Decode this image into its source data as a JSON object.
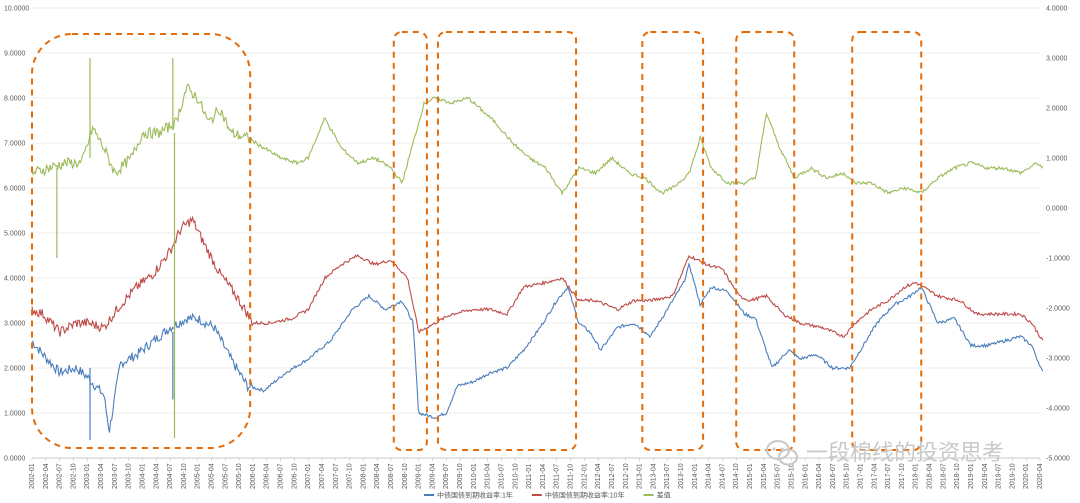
{
  "chart_data": {
    "type": "line",
    "title": "",
    "left_axis": {
      "min": 0,
      "max": 10,
      "step": 1,
      "tick_labels": [
        "0.0000",
        "1.0000",
        "2.0000",
        "3.0000",
        "4.0000",
        "5.0000",
        "6.0000",
        "7.0000",
        "8.0000",
        "9.0000",
        "10.0000"
      ]
    },
    "right_axis": {
      "min": -5,
      "max": 4,
      "step": 1,
      "tick_labels": [
        "-5.0000",
        "-4.0000",
        "-3.0000",
        "-2.0000",
        "-1.0000",
        "0.0000",
        "1.0000",
        "2.0000",
        "3.0000",
        "4.0000"
      ]
    },
    "x_start": "2002-01",
    "x_end": "2020-04",
    "x_label_step_months": 3,
    "series": [
      {
        "name": "中债国债到期收益率:1年",
        "axis": "left",
        "color": "#4a7ebb",
        "points": [
          [
            2002.0,
            2.6
          ],
          [
            2002.2,
            2.3
          ],
          [
            2002.5,
            1.9
          ],
          [
            2002.8,
            2.0
          ],
          [
            2003.0,
            1.8
          ],
          [
            2003.3,
            1.4
          ],
          [
            2003.4,
            0.6
          ],
          [
            2003.6,
            2.1
          ],
          [
            2003.9,
            2.3
          ],
          [
            2004.2,
            2.6
          ],
          [
            2004.5,
            2.9
          ],
          [
            2004.8,
            3.1
          ],
          [
            2005.0,
            3.1
          ],
          [
            2005.3,
            2.9
          ],
          [
            2005.6,
            2.2
          ],
          [
            2005.9,
            1.6
          ],
          [
            2006.2,
            1.5
          ],
          [
            2006.6,
            1.9
          ],
          [
            2007.0,
            2.2
          ],
          [
            2007.4,
            2.6
          ],
          [
            2007.8,
            3.3
          ],
          [
            2008.1,
            3.6
          ],
          [
            2008.4,
            3.3
          ],
          [
            2008.7,
            3.5
          ],
          [
            2008.9,
            3.0
          ],
          [
            2009.0,
            1.0
          ],
          [
            2009.3,
            0.9
          ],
          [
            2009.5,
            1.0
          ],
          [
            2009.7,
            1.6
          ],
          [
            2010.0,
            1.7
          ],
          [
            2010.3,
            1.9
          ],
          [
            2010.6,
            2.0
          ],
          [
            2010.9,
            2.4
          ],
          [
            2011.2,
            2.9
          ],
          [
            2011.5,
            3.5
          ],
          [
            2011.7,
            3.8
          ],
          [
            2011.9,
            3.0
          ],
          [
            2012.1,
            2.8
          ],
          [
            2012.3,
            2.4
          ],
          [
            2012.6,
            2.9
          ],
          [
            2012.9,
            3.0
          ],
          [
            2013.2,
            2.7
          ],
          [
            2013.5,
            3.3
          ],
          [
            2013.8,
            3.9
          ],
          [
            2013.9,
            4.3
          ],
          [
            2014.1,
            3.4
          ],
          [
            2014.3,
            3.8
          ],
          [
            2014.6,
            3.7
          ],
          [
            2014.9,
            3.2
          ],
          [
            2015.1,
            3.1
          ],
          [
            2015.4,
            2.0
          ],
          [
            2015.7,
            2.4
          ],
          [
            2015.9,
            2.2
          ],
          [
            2016.2,
            2.3
          ],
          [
            2016.5,
            2.0
          ],
          [
            2016.8,
            2.0
          ],
          [
            2017.0,
            2.4
          ],
          [
            2017.3,
            3.0
          ],
          [
            2017.6,
            3.4
          ],
          [
            2017.9,
            3.6
          ],
          [
            2018.1,
            3.8
          ],
          [
            2018.4,
            3.0
          ],
          [
            2018.7,
            3.1
          ],
          [
            2019.0,
            2.5
          ],
          [
            2019.3,
            2.5
          ],
          [
            2019.6,
            2.6
          ],
          [
            2019.9,
            2.7
          ],
          [
            2020.1,
            2.5
          ],
          [
            2020.3,
            1.9
          ]
        ]
      },
      {
        "name": "中债国债到期收益率:10年",
        "axis": "left",
        "color": "#be4b48",
        "points": [
          [
            2002.0,
            3.3
          ],
          [
            2002.2,
            3.2
          ],
          [
            2002.5,
            2.8
          ],
          [
            2002.8,
            3.0
          ],
          [
            2003.0,
            3.0
          ],
          [
            2003.3,
            2.9
          ],
          [
            2003.6,
            3.4
          ],
          [
            2003.9,
            3.8
          ],
          [
            2004.2,
            4.1
          ],
          [
            2004.5,
            4.6
          ],
          [
            2004.7,
            5.1
          ],
          [
            2004.9,
            5.3
          ],
          [
            2005.1,
            4.8
          ],
          [
            2005.4,
            4.1
          ],
          [
            2005.7,
            3.6
          ],
          [
            2006.0,
            3.0
          ],
          [
            2006.3,
            3.0
          ],
          [
            2006.7,
            3.1
          ],
          [
            2007.0,
            3.3
          ],
          [
            2007.3,
            4.0
          ],
          [
            2007.6,
            4.3
          ],
          [
            2007.9,
            4.5
          ],
          [
            2008.2,
            4.3
          ],
          [
            2008.5,
            4.4
          ],
          [
            2008.8,
            4.0
          ],
          [
            2009.0,
            2.8
          ],
          [
            2009.3,
            3.0
          ],
          [
            2009.6,
            3.2
          ],
          [
            2010.0,
            3.3
          ],
          [
            2010.3,
            3.3
          ],
          [
            2010.6,
            3.2
          ],
          [
            2010.9,
            3.8
          ],
          [
            2011.3,
            3.9
          ],
          [
            2011.6,
            4.0
          ],
          [
            2011.9,
            3.5
          ],
          [
            2012.2,
            3.5
          ],
          [
            2012.6,
            3.3
          ],
          [
            2012.9,
            3.5
          ],
          [
            2013.2,
            3.5
          ],
          [
            2013.6,
            3.6
          ],
          [
            2013.9,
            4.5
          ],
          [
            2014.2,
            4.3
          ],
          [
            2014.5,
            4.2
          ],
          [
            2014.8,
            3.6
          ],
          [
            2015.0,
            3.5
          ],
          [
            2015.3,
            3.6
          ],
          [
            2015.6,
            3.2
          ],
          [
            2015.9,
            3.0
          ],
          [
            2016.3,
            2.9
          ],
          [
            2016.7,
            2.7
          ],
          [
            2016.9,
            3.0
          ],
          [
            2017.2,
            3.3
          ],
          [
            2017.5,
            3.5
          ],
          [
            2017.8,
            3.8
          ],
          [
            2018.0,
            3.9
          ],
          [
            2018.4,
            3.6
          ],
          [
            2018.8,
            3.5
          ],
          [
            2019.1,
            3.2
          ],
          [
            2019.5,
            3.2
          ],
          [
            2019.9,
            3.2
          ],
          [
            2020.1,
            3.0
          ],
          [
            2020.3,
            2.6
          ]
        ]
      },
      {
        "name": "差值",
        "axis": "right",
        "color": "#9bbb59",
        "points": [
          [
            2002.0,
            0.7
          ],
          [
            2002.3,
            0.8
          ],
          [
            2002.6,
            0.9
          ],
          [
            2002.9,
            0.9
          ],
          [
            2003.1,
            1.6
          ],
          [
            2003.3,
            1.2
          ],
          [
            2003.5,
            0.7
          ],
          [
            2003.8,
            1.0
          ],
          [
            2004.0,
            1.5
          ],
          [
            2004.3,
            1.5
          ],
          [
            2004.6,
            1.7
          ],
          [
            2004.8,
            2.4
          ],
          [
            2005.0,
            2.2
          ],
          [
            2005.2,
            1.7
          ],
          [
            2005.4,
            2.0
          ],
          [
            2005.6,
            1.5
          ],
          [
            2005.9,
            1.4
          ],
          [
            2006.2,
            1.2
          ],
          [
            2006.5,
            1.0
          ],
          [
            2006.8,
            0.9
          ],
          [
            2007.0,
            1.0
          ],
          [
            2007.3,
            1.8
          ],
          [
            2007.6,
            1.2
          ],
          [
            2007.9,
            0.9
          ],
          [
            2008.2,
            1.0
          ],
          [
            2008.5,
            0.8
          ],
          [
            2008.7,
            0.5
          ],
          [
            2008.9,
            1.3
          ],
          [
            2009.1,
            2.1
          ],
          [
            2009.3,
            2.2
          ],
          [
            2009.6,
            2.1
          ],
          [
            2009.9,
            2.2
          ],
          [
            2010.1,
            2.0
          ],
          [
            2010.4,
            1.7
          ],
          [
            2010.7,
            1.3
          ],
          [
            2011.0,
            1.0
          ],
          [
            2011.3,
            0.8
          ],
          [
            2011.6,
            0.3
          ],
          [
            2011.9,
            0.8
          ],
          [
            2012.2,
            0.7
          ],
          [
            2012.5,
            1.0
          ],
          [
            2012.8,
            0.7
          ],
          [
            2013.1,
            0.6
          ],
          [
            2013.4,
            0.3
          ],
          [
            2013.6,
            0.4
          ],
          [
            2013.9,
            0.7
          ],
          [
            2014.1,
            1.4
          ],
          [
            2014.3,
            0.8
          ],
          [
            2014.6,
            0.5
          ],
          [
            2014.9,
            0.5
          ],
          [
            2015.1,
            0.6
          ],
          [
            2015.3,
            1.9
          ],
          [
            2015.5,
            1.3
          ],
          [
            2015.8,
            0.6
          ],
          [
            2016.1,
            0.8
          ],
          [
            2016.4,
            0.6
          ],
          [
            2016.7,
            0.7
          ],
          [
            2016.9,
            0.5
          ],
          [
            2017.2,
            0.5
          ],
          [
            2017.5,
            0.3
          ],
          [
            2017.8,
            0.4
          ],
          [
            2018.1,
            0.3
          ],
          [
            2018.4,
            0.6
          ],
          [
            2018.7,
            0.8
          ],
          [
            2019.0,
            0.9
          ],
          [
            2019.3,
            0.8
          ],
          [
            2019.6,
            0.8
          ],
          [
            2019.9,
            0.7
          ],
          [
            2020.2,
            0.9
          ],
          [
            2020.3,
            0.8
          ]
        ]
      }
    ],
    "spikes": [
      {
        "series": 2,
        "x": 2002.45,
        "from": 0.8,
        "to": -1.0
      },
      {
        "series": 2,
        "x": 2003.05,
        "from": 1.0,
        "to": 3.0
      },
      {
        "series": 2,
        "x": 2004.55,
        "from": 1.6,
        "to": 3.0
      },
      {
        "series": 2,
        "x": 2004.58,
        "from": 1.5,
        "to": -4.6
      },
      {
        "series": 0,
        "x": 2003.05,
        "from": 2.0,
        "to": 0.4
      },
      {
        "series": 0,
        "x": 2004.55,
        "from": 2.8,
        "to": 1.3
      }
    ],
    "highlight_regions": [
      {
        "label": "region-1",
        "x0": 2002.0,
        "x1": 2005.95
      },
      {
        "label": "region-2",
        "x0": 2008.55,
        "x1": 2009.15
      },
      {
        "label": "region-3",
        "x0": 2009.35,
        "x1": 2011.85
      },
      {
        "label": "region-4",
        "x0": 2013.05,
        "x1": 2014.15
      },
      {
        "label": "region-5",
        "x0": 2014.75,
        "x1": 2015.8
      },
      {
        "label": "region-6",
        "x0": 2016.85,
        "x1": 2018.1
      }
    ],
    "legend_position": "bottom"
  },
  "watermark": {
    "text": "一段棉线的投资思考"
  }
}
